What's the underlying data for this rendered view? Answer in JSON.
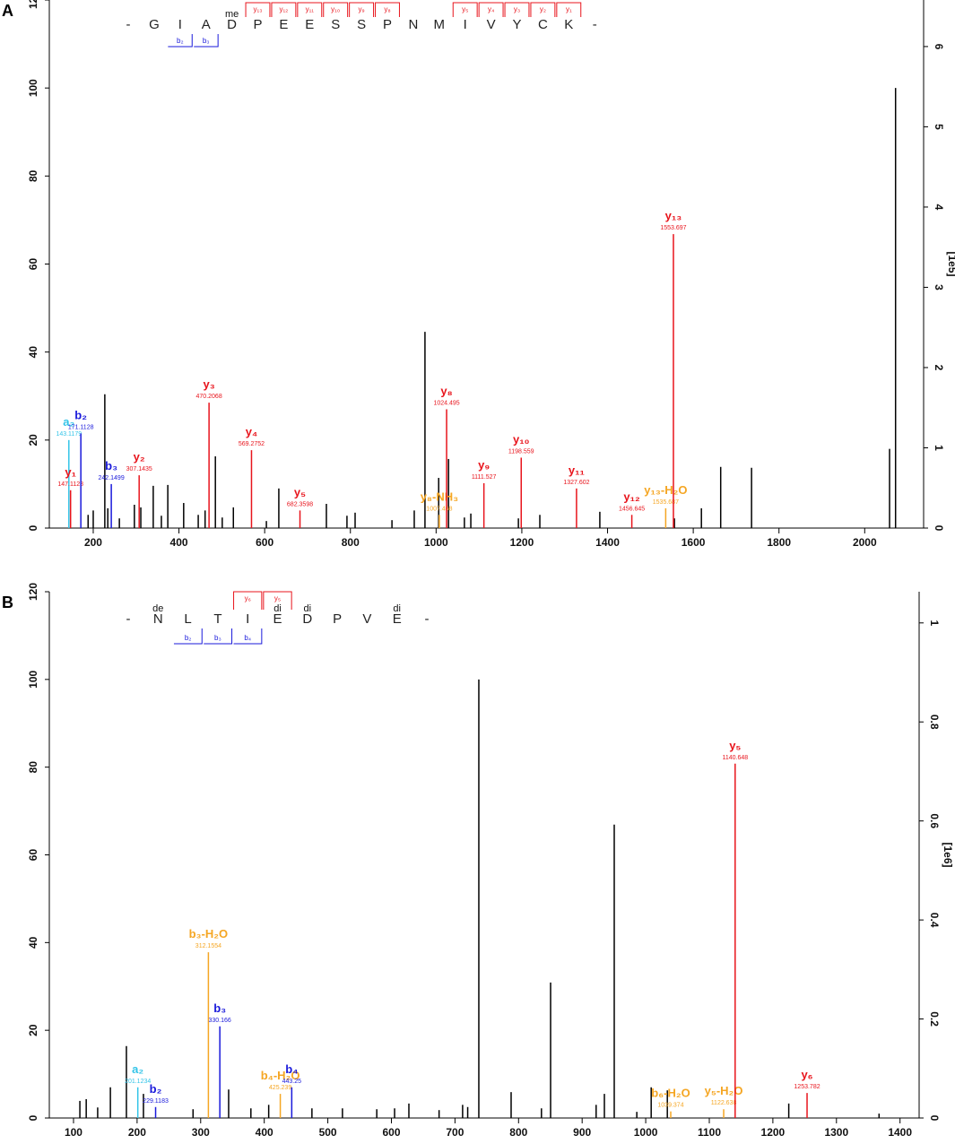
{
  "chart_data": [
    {
      "type": "spectrum",
      "panel": "A",
      "xlim": [
        108,
        2127
      ],
      "xticks": [
        200,
        400,
        600,
        800,
        1000,
        1200,
        1400,
        1600,
        1800,
        2000
      ],
      "ylim": [
        0,
        120
      ],
      "yticks": [
        0,
        20,
        40,
        60,
        80,
        100,
        120
      ],
      "y2lim": [
        0,
        6.58
      ],
      "y2ticks": [
        0,
        1,
        2,
        3,
        4,
        5,
        6
      ],
      "y2_label": "[1e5]",
      "sequence": [
        "-",
        "G",
        "I",
        "A",
        "D",
        "P",
        "E",
        "E",
        "S",
        "S",
        "P",
        "N",
        "M",
        "I",
        "V",
        "Y",
        "C",
        "K",
        "-"
      ],
      "modifications": [
        null,
        null,
        null,
        null,
        "me",
        null,
        null,
        null,
        null,
        null,
        null,
        null,
        null,
        null,
        null,
        null,
        null,
        null,
        null
      ],
      "y_ions": [
        null,
        null,
        null,
        null,
        null,
        "y₁₃",
        "y₁₂",
        "y₁₁",
        "y₁₀",
        "y₉",
        "y₈",
        null,
        null,
        "y₅",
        "y₄",
        "y₃",
        "y₂",
        "y₁",
        null
      ],
      "b_ions": [
        null,
        null,
        "b₂",
        "b₃",
        null,
        null,
        null,
        null,
        null,
        null,
        null,
        null,
        null,
        null,
        null,
        null,
        null,
        null,
        null
      ],
      "annotated_peaks": [
        {
          "label": "a₂",
          "mz": 143.1179,
          "intensity": 20,
          "color": "#33c4e8"
        },
        {
          "label": "y₁",
          "mz": 147.1128,
          "intensity": 8.6,
          "color": "#e8141c"
        },
        {
          "label": "b₂",
          "mz": 171.1128,
          "intensity": 21.5,
          "color": "#1a1adb"
        },
        {
          "label": "b₃",
          "mz": 242.1499,
          "intensity": 10,
          "color": "#1a1adb"
        },
        {
          "label": "y₂",
          "mz": 307.1435,
          "intensity": 12,
          "color": "#e8141c"
        },
        {
          "label": "y₃",
          "mz": 470.2068,
          "intensity": 28.5,
          "color": "#e8141c"
        },
        {
          "label": "y₄",
          "mz": 569.2752,
          "intensity": 17.7,
          "color": "#e8141c"
        },
        {
          "label": "y₅",
          "mz": 682.3598,
          "intensity": 4,
          "color": "#e8141c"
        },
        {
          "label": "y₈-NH₃",
          "mz": 1007.468,
          "intensity": 3,
          "color": "#f5a623"
        },
        {
          "label": "y₈",
          "mz": 1024.495,
          "intensity": 27,
          "color": "#e8141c"
        },
        {
          "label": "y₉",
          "mz": 1111.527,
          "intensity": 10.2,
          "color": "#e8141c"
        },
        {
          "label": "y₁₀",
          "mz": 1198.559,
          "intensity": 16,
          "color": "#e8141c"
        },
        {
          "label": "y₁₁",
          "mz": 1327.602,
          "intensity": 9,
          "color": "#e8141c"
        },
        {
          "label": "y₁₂",
          "mz": 1456.645,
          "intensity": 3,
          "color": "#e8141c"
        },
        {
          "label": "y₁₃-H₂O",
          "mz": 1535.687,
          "intensity": 4.5,
          "color": "#f5a623"
        },
        {
          "label": "y₁₃",
          "mz": 1553.697,
          "intensity": 66.8,
          "color": "#e8141c"
        }
      ],
      "peak_color": "#000000",
      "peaks": {
        "x": [
          188,
          200,
          227,
          234,
          261,
          296,
          311,
          340,
          359,
          374,
          411,
          445,
          461,
          485,
          501,
          527,
          604,
          633,
          744,
          792,
          811,
          897,
          949,
          974,
          1006,
          1029,
          1066,
          1081,
          1192,
          1242,
          1382,
          1556,
          1619,
          1664,
          1736,
          2058,
          2072
        ],
        "values": [
          3,
          4,
          30.4,
          4.5,
          2.2,
          5.3,
          4.7,
          9.6,
          2.8,
          9.8,
          5.7,
          3,
          4,
          16.3,
          2.4,
          4.7,
          1.6,
          9,
          5.5,
          2.8,
          3.5,
          1.8,
          4,
          44.6,
          11.4,
          15.7,
          2.4,
          3.3,
          2.2,
          3,
          3.7,
          2.2,
          4.5,
          13.9,
          13.7,
          18,
          100
        ]
      }
    },
    {
      "type": "spectrum",
      "panel": "B",
      "xlim": [
        69,
        1423
      ],
      "xticks": [
        100,
        200,
        300,
        400,
        500,
        600,
        700,
        800,
        900,
        1000,
        1100,
        1200,
        1300,
        1400
      ],
      "ylim": [
        0,
        120
      ],
      "yticks": [
        0,
        20,
        40,
        60,
        80,
        100,
        120
      ],
      "y2lim": [
        0,
        1.063
      ],
      "y2ticks": [
        0,
        0.2,
        0.4,
        0.6,
        0.8,
        1
      ],
      "y2_label": "[1e6]",
      "sequence": [
        "-",
        "N",
        "L",
        "T",
        "I",
        "E",
        "D",
        "P",
        "V",
        "E",
        "-"
      ],
      "modifications": [
        null,
        "de",
        null,
        null,
        null,
        "di",
        "di",
        null,
        null,
        "di",
        null
      ],
      "y_ions": [
        null,
        null,
        null,
        null,
        "y₆",
        "y₅",
        null,
        null,
        null,
        null,
        null
      ],
      "b_ions": [
        null,
        null,
        "b₂",
        "b₃",
        "b₄",
        null,
        null,
        null,
        null,
        null,
        null
      ],
      "annotated_peaks": [
        {
          "label": "a₂",
          "mz": 201.1234,
          "intensity": 7,
          "color": "#33c4e8"
        },
        {
          "label": "b₂",
          "mz": 229.1183,
          "intensity": 2.5,
          "color": "#1a1adb"
        },
        {
          "label": "b₃-H₂O",
          "mz": 312.1554,
          "intensity": 37.8,
          "color": "#f5a623"
        },
        {
          "label": "b₃",
          "mz": 330.166,
          "intensity": 20.9,
          "color": "#1a1adb"
        },
        {
          "label": "b₄-H₂O",
          "mz": 425.239,
          "intensity": 5.5,
          "color": "#f5a623"
        },
        {
          "label": "b₄",
          "mz": 443.25,
          "intensity": 7,
          "color": "#1a1adb"
        },
        {
          "label": "b₆-H₂O",
          "mz": 1039.374,
          "intensity": 1.5,
          "color": "#f5a623"
        },
        {
          "label": "y₅-H₂O",
          "mz": 1122.638,
          "intensity": 2,
          "color": "#f5a623"
        },
        {
          "label": "y₅",
          "mz": 1140.648,
          "intensity": 80.8,
          "color": "#e8141c"
        },
        {
          "label": "y₆",
          "mz": 1253.782,
          "intensity": 5.7,
          "color": "#e8141c"
        }
      ],
      "peak_color": "#000000",
      "peaks": {
        "x": [
          110,
          120,
          138,
          158,
          183.2,
          210,
          288,
          344,
          379,
          407,
          475,
          523,
          577,
          605,
          627.5,
          675,
          712,
          720,
          737.5,
          788.3,
          836,
          850.4,
          922,
          935,
          950.5,
          986,
          1008.6,
          1034,
          1225,
          1367
        ],
        "values": [
          3.9,
          4.3,
          2.4,
          7,
          16.4,
          5.5,
          2,
          6.5,
          2.2,
          3,
          2.2,
          2.2,
          2,
          2.2,
          3.3,
          1.8,
          3,
          2.5,
          100,
          5.9,
          2.2,
          30.9,
          3,
          5.5,
          66.9,
          1.4,
          7,
          6.3,
          3.3,
          1
        ]
      }
    }
  ]
}
